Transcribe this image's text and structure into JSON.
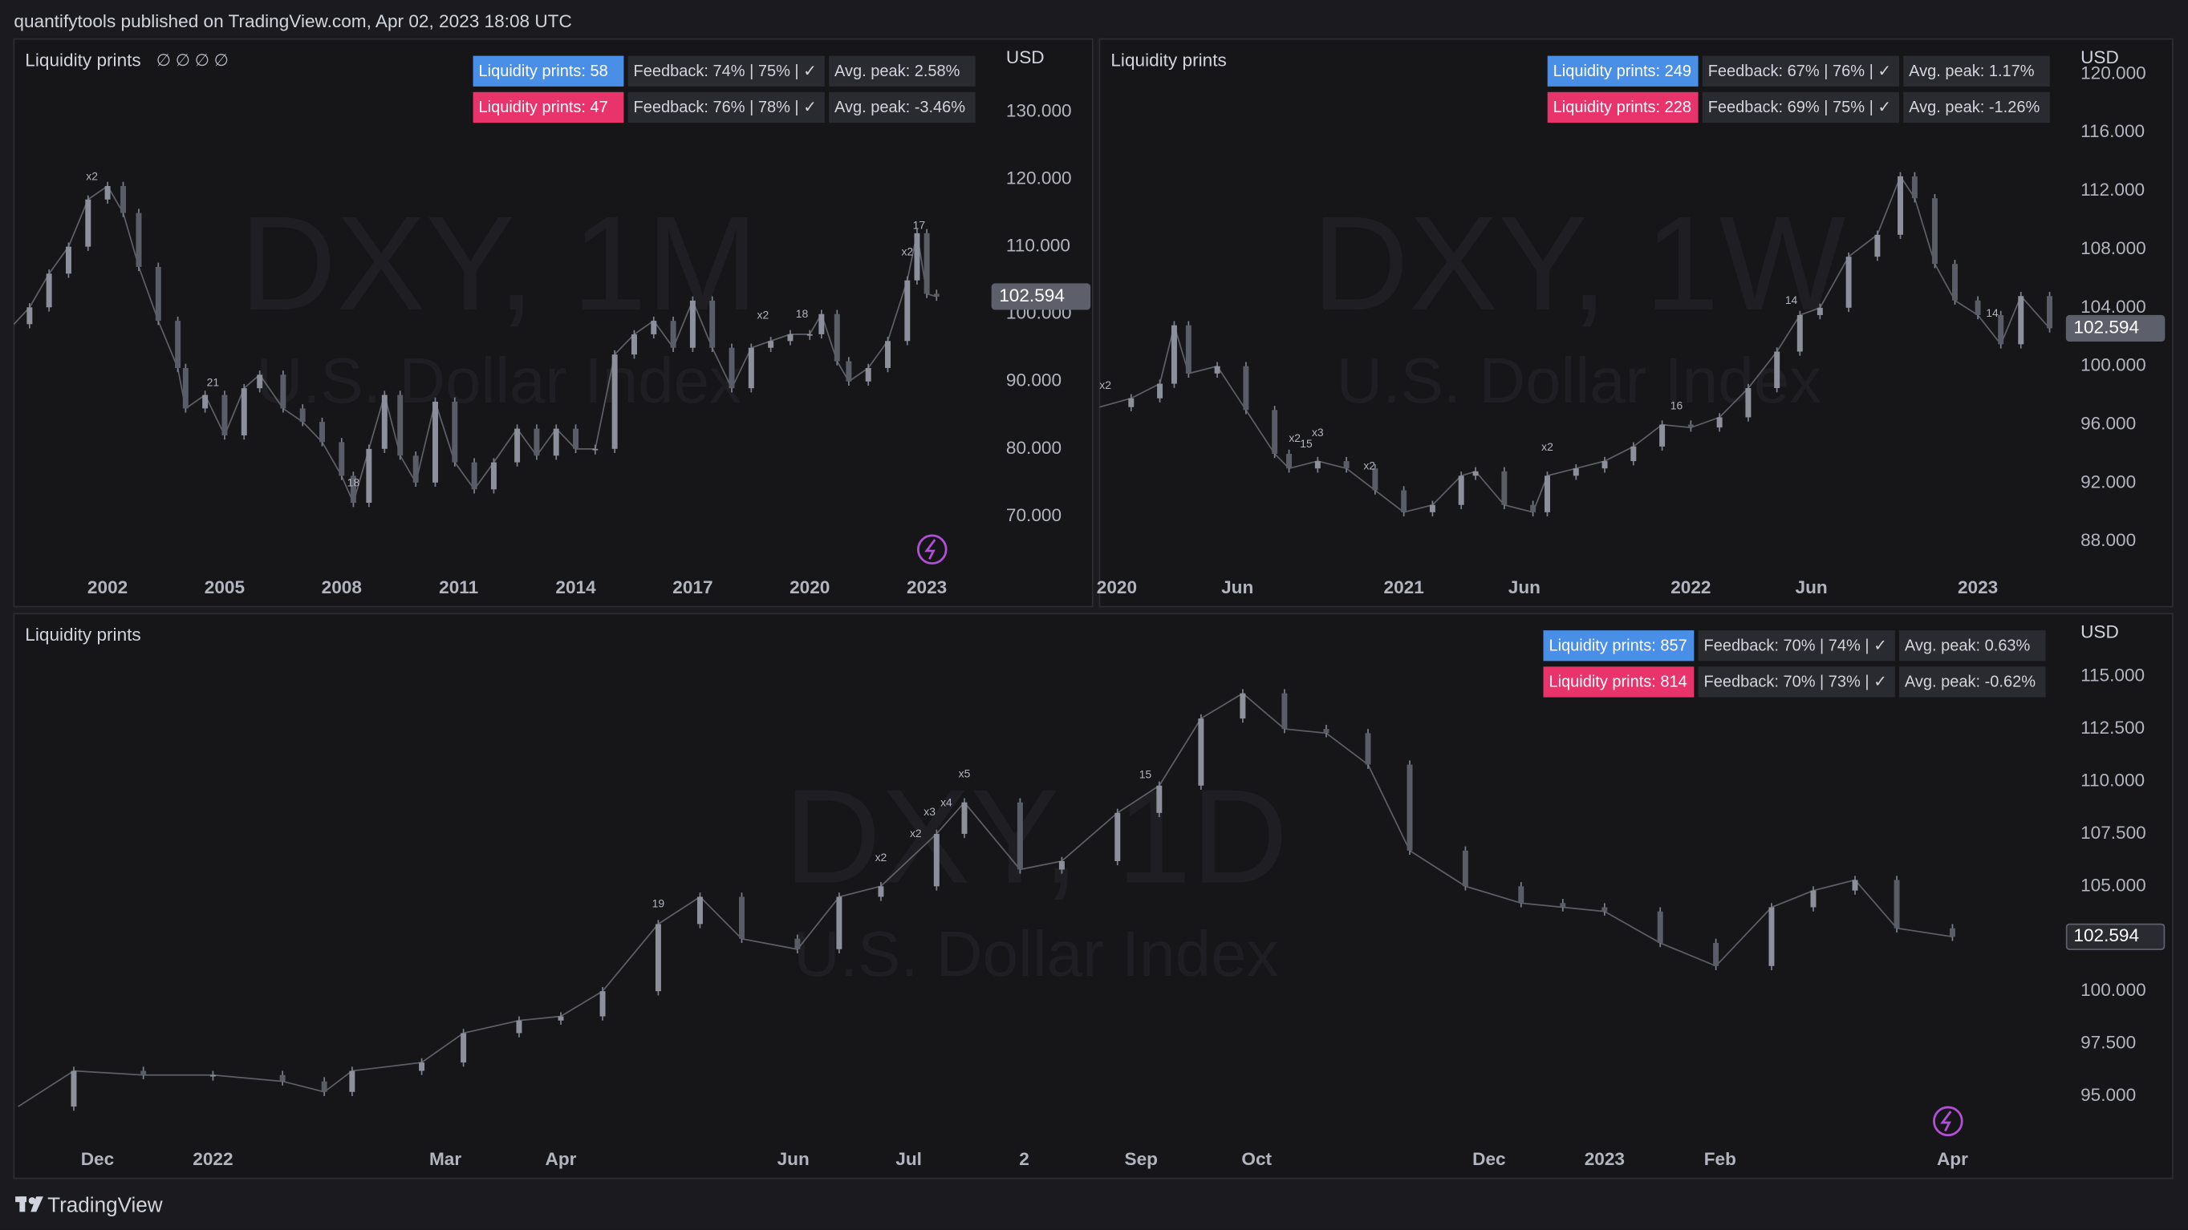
{
  "header": {
    "publisher": "quantifytools published on TradingView.com, Apr 02, 2023 18:08 UTC"
  },
  "footer": {
    "brand": "TradingView"
  },
  "chart_data": [
    {
      "type": "candlestick",
      "title": "Liquidity prints",
      "title_icons": "∅ ∅ ∅ ∅",
      "watermark": "DXY, 1M",
      "watermark_subtitle": "U.S. Dollar Index",
      "unit": "USD",
      "color": "#7c7f88",
      "stats": [
        [
          "Liquidity prints: 58",
          "Feedback: 74% | 75% | ✓",
          "Avg. peak: 2.58%"
        ],
        [
          "Liquidity prints: 47",
          "Feedback: 76% | 78% | ✓",
          "Avg. peak: -3.46%"
        ]
      ],
      "stat_colors": [
        "#4a8fe7",
        "#e8336b"
      ],
      "x": [
        1999.6,
        2000.0,
        2000.5,
        2001.0,
        2001.5,
        2002.0,
        2002.4,
        2002.8,
        2003.3,
        2003.8,
        2004.0,
        2004.5,
        2005.0,
        2005.5,
        2005.9,
        2006.5,
        2007.0,
        2007.5,
        2008.0,
        2008.3,
        2008.7,
        2009.1,
        2009.5,
        2009.9,
        2010.4,
        2010.9,
        2011.4,
        2011.9,
        2012.5,
        2013.0,
        2013.5,
        2014.0,
        2014.5,
        2015.0,
        2015.5,
        2016.0,
        2016.5,
        2017.0,
        2017.5,
        2018.0,
        2018.5,
        2019.0,
        2019.5,
        2020.0,
        2020.3,
        2020.7,
        2021.0,
        2021.5,
        2022.0,
        2022.5,
        2022.75,
        2023.0,
        2023.25
      ],
      "values": [
        98.5,
        101,
        106,
        110,
        117,
        119,
        115,
        107,
        99,
        92,
        86,
        88,
        82,
        89,
        91,
        86,
        84,
        81,
        76,
        72,
        80,
        88,
        79,
        75,
        87,
        78,
        74,
        78,
        83,
        79,
        83,
        80,
        80,
        94,
        97,
        99,
        95,
        102,
        95,
        89,
        95,
        96,
        97,
        97,
        100,
        93,
        90,
        92,
        96,
        105,
        112,
        103,
        102.594
      ],
      "xlim": [
        1999.6,
        2024.46
      ],
      "ylim": [
        62.8,
        140.8
      ],
      "xticks": [
        2002,
        2005,
        2008,
        2011,
        2014,
        2017,
        2020,
        2023
      ],
      "yticks": [
        {
          "value": 70,
          "label": "70.000"
        },
        {
          "value": 80,
          "label": "80.000"
        },
        {
          "value": 90,
          "label": "90.000"
        },
        {
          "value": 100,
          "label": "100.000"
        },
        {
          "value": 110,
          "label": "110.000"
        },
        {
          "value": 120,
          "label": "120.000"
        },
        {
          "value": 130,
          "label": "130.000"
        }
      ],
      "annotations": [
        {
          "x": 2001.6,
          "label": "x2"
        },
        {
          "x": 2004.7,
          "label": "21"
        },
        {
          "x": 2008.3,
          "label": "18"
        },
        {
          "x": 2018.8,
          "label": "x2"
        },
        {
          "x": 2019.8,
          "label": "18"
        },
        {
          "x": 2022.5,
          "label": "x2"
        },
        {
          "x": 2022.8,
          "label": "17"
        }
      ]
    },
    {
      "type": "candlestick",
      "title": "Liquidity prints",
      "watermark": "DXY, 1W",
      "watermark_subtitle": "U.S. Dollar Index",
      "unit": "USD",
      "color": "#7c7f88",
      "stats": [
        [
          "Liquidity prints: 249",
          "Feedback: 67% | 76% | ✓",
          "Avg. peak: 1.17%"
        ],
        [
          "Liquidity prints: 228",
          "Feedback: 69% | 75% | ✓",
          "Avg. peak: -1.26%"
        ]
      ],
      "stat_colors": [
        "#4a8fe7",
        "#e8336b"
      ],
      "x": [
        2019.94,
        2020.05,
        2020.15,
        2020.2,
        2020.25,
        2020.35,
        2020.45,
        2020.55,
        2020.6,
        2020.7,
        2020.8,
        2020.9,
        2021.0,
        2021.1,
        2021.2,
        2021.25,
        2021.35,
        2021.45,
        2021.5,
        2021.6,
        2021.7,
        2021.8,
        2021.9,
        2022.0,
        2022.1,
        2022.2,
        2022.3,
        2022.38,
        2022.45,
        2022.55,
        2022.65,
        2022.73,
        2022.78,
        2022.85,
        2022.92,
        2023.0,
        2023.08,
        2023.15,
        2023.25
      ],
      "values": [
        97.2,
        97.8,
        98.8,
        102.8,
        99.5,
        100.0,
        97.0,
        94.0,
        93.0,
        93.5,
        93.0,
        91.5,
        90.0,
        90.5,
        92.5,
        92.8,
        90.5,
        90.0,
        92.5,
        93.0,
        93.5,
        94.5,
        96.0,
        95.8,
        96.5,
        98.5,
        101.0,
        103.5,
        104.0,
        107.5,
        109.0,
        113.0,
        111.5,
        107.0,
        104.5,
        103.5,
        101.5,
        104.8,
        102.594
      ],
      "xlim": [
        2019.94,
        2023.28
      ],
      "ylim": [
        86.4,
        122.4
      ],
      "xticks": [
        2020,
        {
          "value": 2020.42,
          "label": "Jun"
        },
        2021,
        {
          "value": 2021.42,
          "label": "Jun"
        },
        2022,
        {
          "value": 2022.42,
          "label": "Jun"
        },
        2023
      ],
      "yticks": [
        {
          "value": 88,
          "label": "88.000"
        },
        {
          "value": 92,
          "label": "92.000"
        },
        {
          "value": 96,
          "label": "96.000"
        },
        {
          "value": 100,
          "label": "100.000"
        },
        {
          "value": 104,
          "label": "104.000"
        },
        {
          "value": 108,
          "label": "108.000"
        },
        {
          "value": 112,
          "label": "112.000"
        },
        {
          "value": 116,
          "label": "116.000"
        },
        {
          "value": 120,
          "label": "120.000"
        }
      ],
      "annotations": [
        {
          "x": 2019.96,
          "label": "x2"
        },
        {
          "x": 2020.62,
          "label": "x2"
        },
        {
          "x": 2020.66,
          "label": "15"
        },
        {
          "x": 2020.7,
          "label": "x3"
        },
        {
          "x": 2020.88,
          "label": "x2"
        },
        {
          "x": 2021.5,
          "label": "x2"
        },
        {
          "x": 2021.95,
          "label": "16"
        },
        {
          "x": 2022.35,
          "label": "14"
        },
        {
          "x": 2023.05,
          "label": "14"
        }
      ]
    },
    {
      "type": "candlestick",
      "title": "Liquidity prints",
      "watermark": "DXY, 1D",
      "watermark_subtitle": "U.S. Dollar Index",
      "unit": "USD",
      "color": "#7c7f88",
      "stats": [
        [
          "Liquidity prints: 857",
          "Feedback: 70% | 74% | ✓",
          "Avg. peak: 0.63%"
        ],
        [
          "Liquidity prints: 814",
          "Feedback: 70% | 73% | ✓",
          "Avg. peak: -0.62%"
        ]
      ],
      "stat_colors": [
        "#4a8fe7",
        "#e8336b"
      ],
      "x": [
        2021.86,
        2021.9,
        2021.95,
        2022.0,
        2022.05,
        2022.08,
        2022.1,
        2022.15,
        2022.18,
        2022.22,
        2022.25,
        2022.28,
        2022.32,
        2022.35,
        2022.38,
        2022.42,
        2022.45,
        2022.48,
        2022.52,
        2022.54,
        2022.58,
        2022.61,
        2022.65,
        2022.68,
        2022.71,
        2022.74,
        2022.77,
        2022.8,
        2022.83,
        2022.86,
        2022.9,
        2022.94,
        2022.97,
        2023.0,
        2023.04,
        2023.08,
        2023.12,
        2023.15,
        2023.18,
        2023.21,
        2023.25
      ],
      "values": [
        94.5,
        96.2,
        96.0,
        96.0,
        95.7,
        95.2,
        96.2,
        96.6,
        98.0,
        98.6,
        98.8,
        100.0,
        103.2,
        104.5,
        102.5,
        102.0,
        104.5,
        105.0,
        107.5,
        109.0,
        105.8,
        106.2,
        108.5,
        109.8,
        113.0,
        114.2,
        112.5,
        112.3,
        110.8,
        106.7,
        105.0,
        104.2,
        104.0,
        103.8,
        102.3,
        101.2,
        104.0,
        104.8,
        105.3,
        103.0,
        102.594
      ],
      "xlim": [
        2021.857,
        2023.326
      ],
      "ylim": [
        93.07,
        118.0
      ],
      "xticks": [
        {
          "value": 2021.917,
          "label": "Dec"
        },
        2022,
        {
          "value": 2022.167,
          "label": "Mar"
        },
        {
          "value": 2022.25,
          "label": "Apr"
        },
        {
          "value": 2022.417,
          "label": "Jun"
        },
        {
          "value": 2022.5,
          "label": "Jul"
        },
        {
          "value": 2022.583,
          "label": "2"
        },
        {
          "value": 2022.667,
          "label": "Sep"
        },
        {
          "value": 2022.75,
          "label": "Oct"
        },
        {
          "value": 2022.917,
          "label": "Dec"
        },
        2023,
        {
          "value": 2023.083,
          "label": "Feb"
        },
        {
          "value": 2023.25,
          "label": "Apr"
        }
      ],
      "yticks": [
        {
          "value": 95,
          "label": "95.000"
        },
        {
          "value": 97.5,
          "label": "97.500"
        },
        {
          "value": 100,
          "label": "100.000"
        },
        {
          "value": 102.5,
          "label": "102.500"
        },
        {
          "value": 105,
          "label": "105.000"
        },
        {
          "value": 107.5,
          "label": "107.500"
        },
        {
          "value": 110,
          "label": "110.000"
        },
        {
          "value": 112.5,
          "label": "112.500"
        },
        {
          "value": 115,
          "label": "115.000"
        }
      ],
      "annotations": [
        {
          "x": 2022.32,
          "label": "19"
        },
        {
          "x": 2022.48,
          "label": "x2"
        },
        {
          "x": 2022.505,
          "label": "x2"
        },
        {
          "x": 2022.515,
          "label": "x3"
        },
        {
          "x": 2022.527,
          "label": "x4"
        },
        {
          "x": 2022.54,
          "label": "x5"
        },
        {
          "x": 2022.67,
          "label": "15"
        }
      ]
    }
  ]
}
